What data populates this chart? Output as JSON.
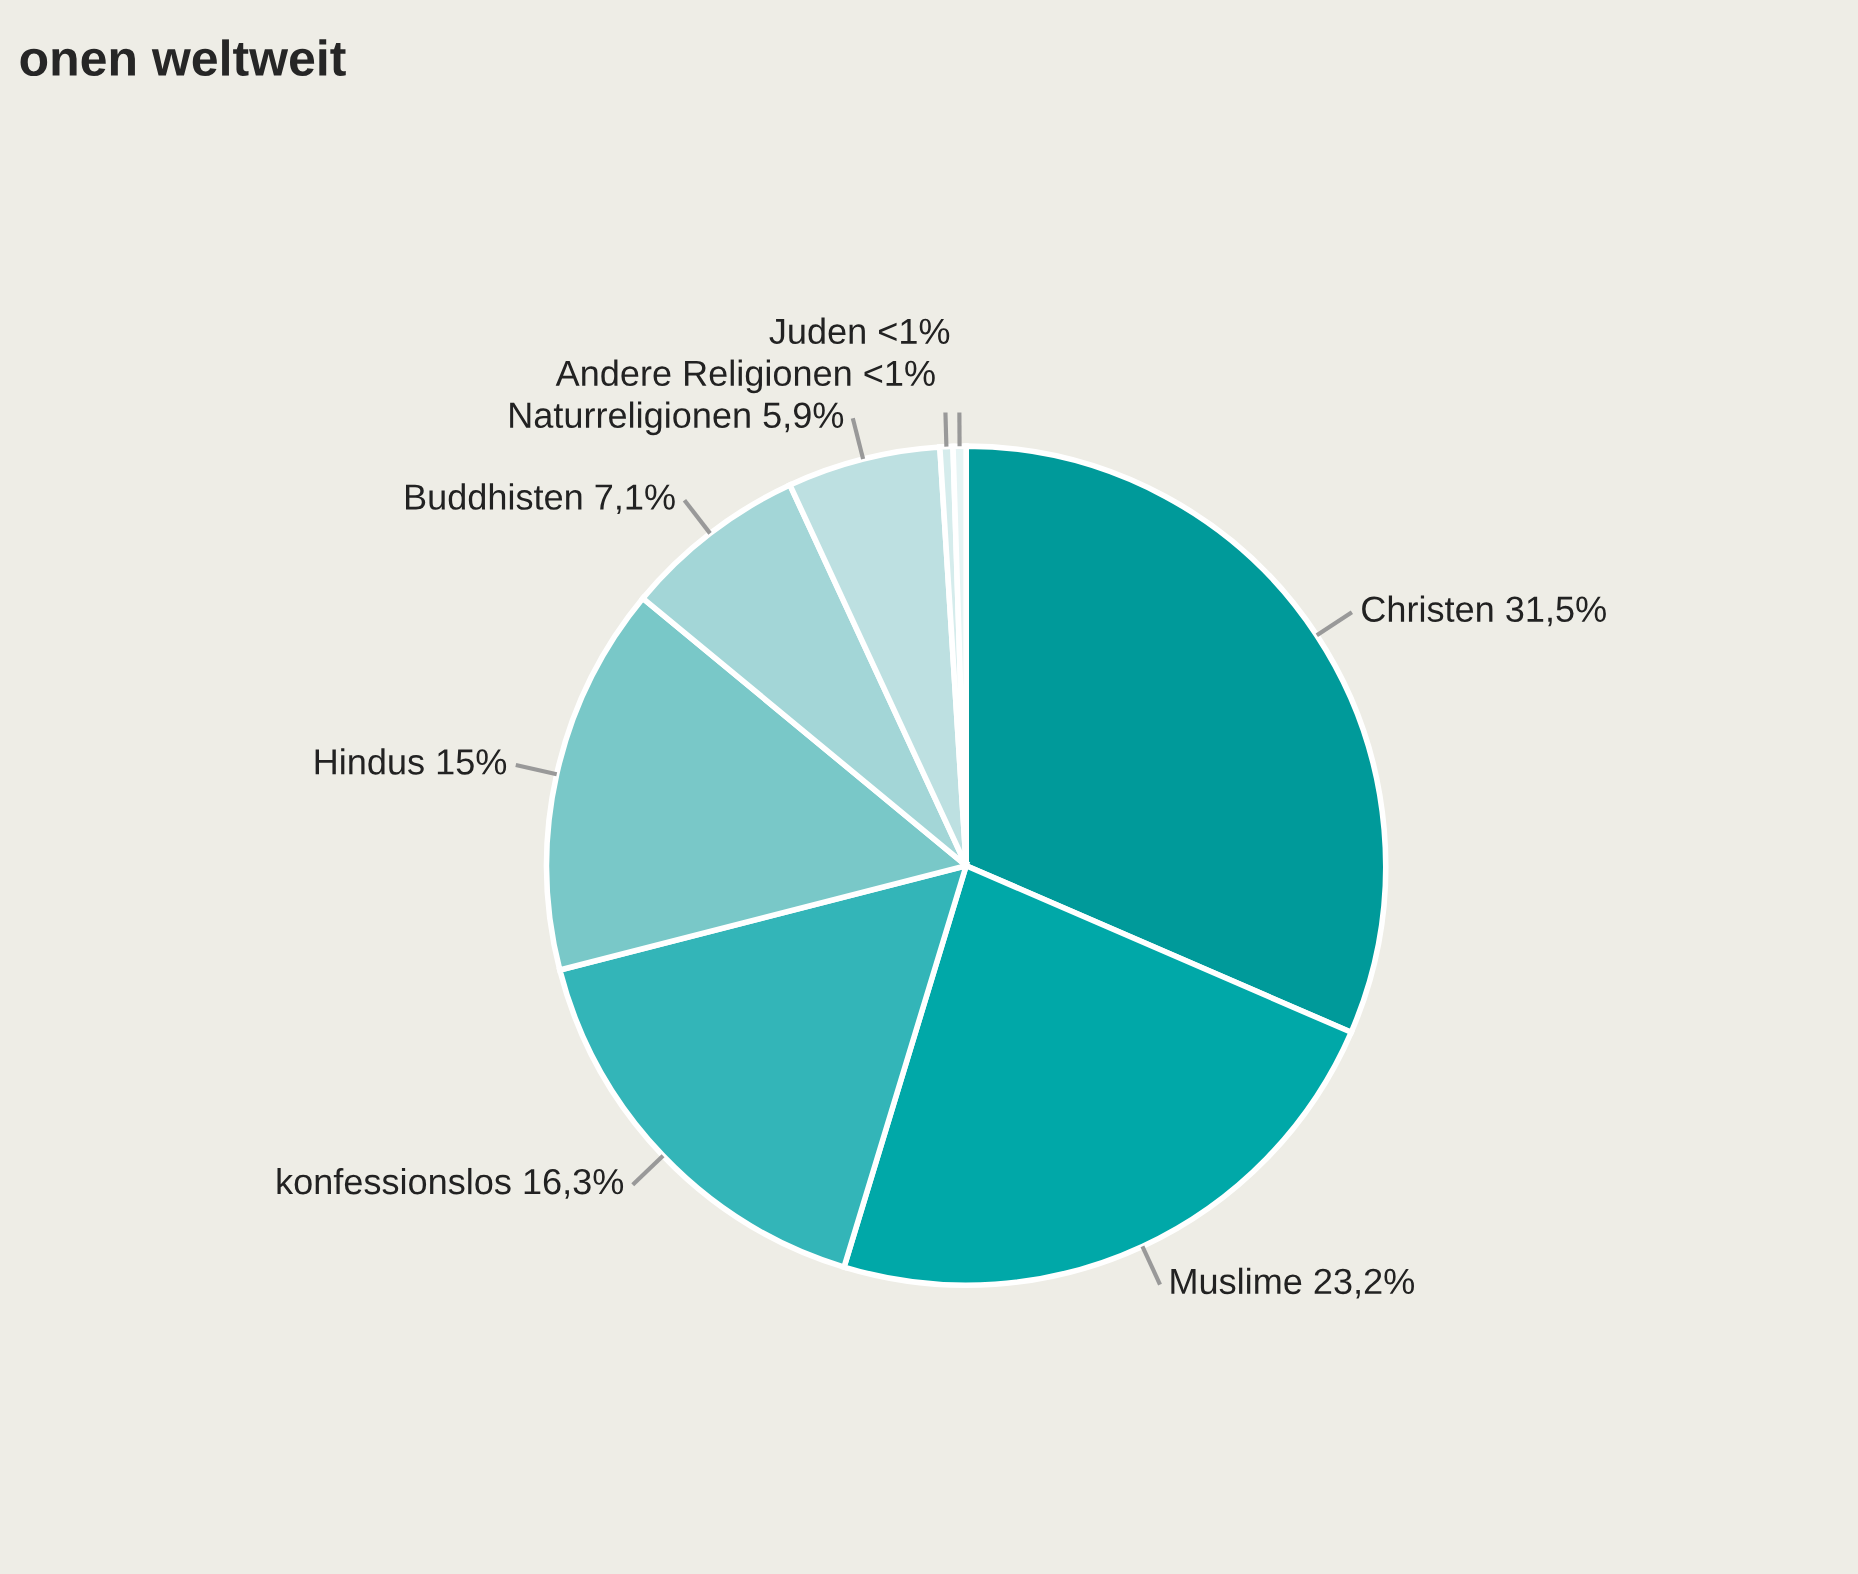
{
  "chart_data": {
    "type": "pie",
    "title": "onen weltweit",
    "categories": [
      "Christen",
      "Muslime",
      "konfessionslos",
      "Hindus",
      "Buddhisten",
      "Naturreligionen",
      "Andere Religionen",
      "Juden"
    ],
    "values": [
      31.5,
      23.2,
      16.3,
      15,
      7.1,
      5.9,
      0.5,
      0.5
    ],
    "value_labels": [
      "31,5%",
      "23,2%",
      "16,3%",
      "15%",
      "7,1%",
      "5,9%",
      "<1%",
      "<1%"
    ],
    "colors": [
      "#009a9a",
      "#00a8a8",
      "#33b5b8",
      "#79c8c8",
      "#a3d6d7",
      "#bde0e1",
      "#d5ecec",
      "#e6f4f4"
    ],
    "legend": false
  }
}
